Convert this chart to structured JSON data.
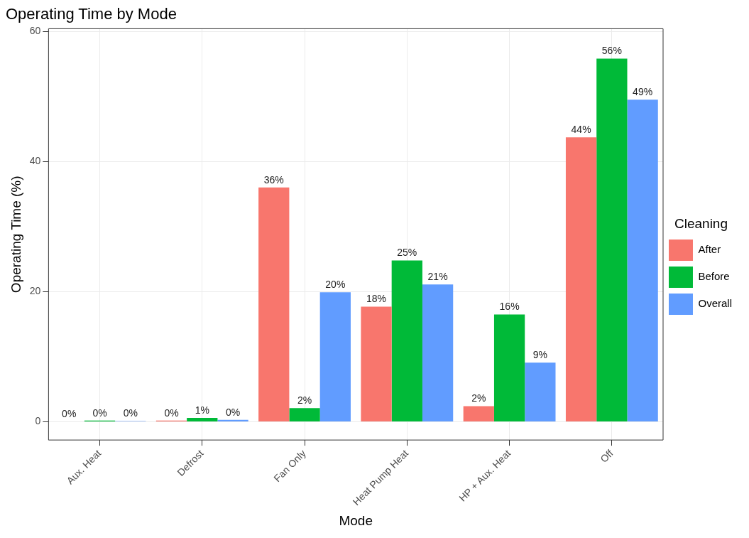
{
  "chart_data": {
    "type": "bar",
    "title": "Operating Time by Mode",
    "xlabel": "Mode",
    "ylabel": "Operating Time (%)",
    "legend_title": "Cleaning",
    "categories": [
      "Aux. Heat",
      "Defrost",
      "Fan Only",
      "Heat Pump Heat",
      "HP + Aux. Heat",
      "Off"
    ],
    "series": [
      {
        "name": "After",
        "color": "#f8766d",
        "values": [
          0.05,
          0.2,
          36,
          17.7,
          2.4,
          43.7
        ],
        "value_labels": [
          "0%",
          "0%",
          "36%",
          "18%",
          "2%",
          "44%"
        ]
      },
      {
        "name": "Before",
        "color": "#00ba38",
        "values": [
          0.2,
          0.6,
          2.1,
          24.8,
          16.5,
          55.8
        ],
        "value_labels": [
          "0%",
          "1%",
          "2%",
          "25%",
          "16%",
          "56%"
        ]
      },
      {
        "name": "Overall",
        "color": "#619cff",
        "values": [
          0.1,
          0.3,
          19.9,
          21.1,
          9.1,
          49.5
        ],
        "value_labels": [
          "0%",
          "0%",
          "20%",
          "21%",
          "9%",
          "49%"
        ]
      }
    ],
    "ylim": [
      -2.8,
      60.4
    ],
    "yticks": [
      0,
      20,
      40,
      60
    ],
    "grid": true,
    "legend": "right"
  }
}
